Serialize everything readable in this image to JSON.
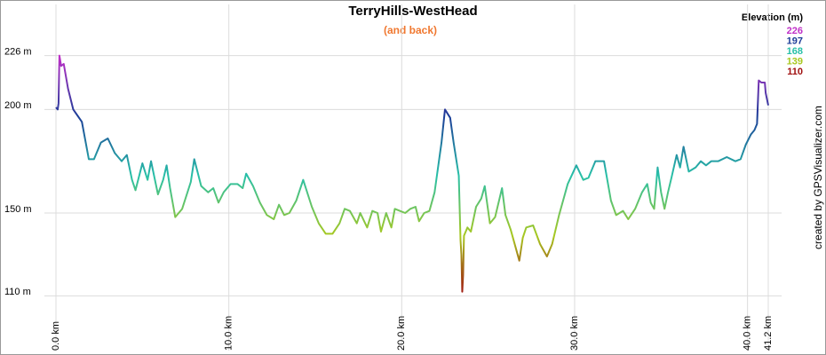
{
  "chart_data": {
    "type": "line",
    "title": "TerryHills-WestHead",
    "subtitle": "(and back)",
    "legend_title": "Elevation (m)",
    "credit": "created by GPSVisualizer.com",
    "color_scale": [
      {
        "value": 226,
        "color": "#c030c8"
      },
      {
        "value": 197,
        "color": "#1c3c98"
      },
      {
        "value": 168,
        "color": "#28c0a8"
      },
      {
        "value": 139,
        "color": "#a8c820"
      },
      {
        "value": 110,
        "color": "#a01010"
      }
    ],
    "x": [
      0.0,
      0.1,
      0.15,
      0.2,
      0.3,
      0.45,
      0.7,
      1.0,
      1.5,
      1.9,
      2.2,
      2.6,
      3.0,
      3.4,
      3.8,
      4.1,
      4.4,
      4.6,
      5.0,
      5.3,
      5.5,
      5.9,
      6.2,
      6.4,
      6.6,
      6.9,
      7.3,
      7.8,
      8.0,
      8.4,
      8.8,
      9.1,
      9.4,
      9.7,
      10.1,
      10.5,
      10.8,
      11.0,
      11.4,
      11.8,
      12.2,
      12.6,
      12.9,
      13.2,
      13.5,
      13.9,
      14.3,
      14.8,
      15.2,
      15.6,
      16.0,
      16.4,
      16.7,
      17.0,
      17.4,
      17.6,
      18.0,
      18.3,
      18.6,
      18.8,
      19.1,
      19.4,
      19.6,
      19.9,
      20.2,
      20.5,
      20.8,
      21.0,
      21.3,
      21.6,
      21.9,
      22.3,
      22.5,
      22.8,
      23.0,
      23.3,
      23.4,
      23.45,
      23.5,
      23.55,
      23.6,
      23.8,
      24.0,
      24.3,
      24.6,
      24.8,
      25.1,
      25.4,
      25.8,
      26.0,
      26.3,
      26.6,
      26.8,
      27.0,
      27.2,
      27.6,
      28.0,
      28.4,
      28.7,
      29.1,
      29.6,
      30.1,
      30.5,
      30.8,
      31.2,
      31.7,
      32.1,
      32.4,
      32.6,
      32.8,
      33.1,
      33.5,
      33.9,
      34.2,
      34.4,
      34.6,
      34.8,
      35.0,
      35.2,
      35.4,
      35.6,
      35.9,
      36.1,
      36.3,
      36.6,
      37.0,
      37.3,
      37.6,
      37.9,
      38.3,
      38.8,
      39.3,
      39.6,
      39.9,
      40.2,
      40.4,
      40.55,
      40.65,
      40.8,
      41.0,
      41.05,
      41.2
    ],
    "values": [
      201,
      200,
      203,
      226,
      221,
      222,
      210,
      200,
      194,
      176,
      176,
      184,
      186,
      179,
      175,
      178,
      166,
      161,
      174,
      166,
      175,
      159,
      166,
      173,
      162,
      148,
      152,
      165,
      176,
      163,
      160,
      162,
      155,
      160,
      164,
      164,
      162,
      169,
      163,
      155,
      149,
      147,
      154,
      149,
      150,
      156,
      166,
      153,
      145,
      140,
      140,
      145,
      152,
      151,
      145,
      150,
      143,
      151,
      150,
      141,
      150,
      143,
      152,
      151,
      150,
      152,
      153,
      146,
      150,
      151,
      160,
      184,
      200,
      196,
      184,
      168,
      137,
      130,
      112,
      120,
      139,
      143,
      141,
      153,
      157,
      163,
      145,
      148,
      162,
      149,
      142,
      133,
      127,
      138,
      143,
      144,
      135,
      129,
      135,
      149,
      164,
      173,
      166,
      167,
      175,
      175,
      156,
      149,
      150,
      151,
      147,
      152,
      160,
      164,
      155,
      152,
      172,
      160,
      152,
      160,
      167,
      178,
      172,
      182,
      170,
      172,
      175,
      173,
      175,
      175,
      177,
      175,
      176,
      183,
      188,
      190,
      193,
      214,
      213,
      213,
      208,
      202
    ],
    "xlim": [
      0,
      41.2
    ],
    "ylim": [
      105,
      240
    ],
    "xticks": [
      {
        "value": 0,
        "label": "0.0 km"
      },
      {
        "value": 10,
        "label": "10.0 km"
      },
      {
        "value": 20,
        "label": "20.0 km"
      },
      {
        "value": 30,
        "label": "30.0 km"
      },
      {
        "value": 40,
        "label": "40.0 km"
      },
      {
        "value": 41.2,
        "label": "41.2 km"
      }
    ],
    "yticks": [
      {
        "value": 110,
        "label": "110 m"
      },
      {
        "value": 150,
        "label": "150 m"
      },
      {
        "value": 200,
        "label": "200 m"
      },
      {
        "value": 226,
        "label": "226 m"
      }
    ],
    "grid": true
  }
}
